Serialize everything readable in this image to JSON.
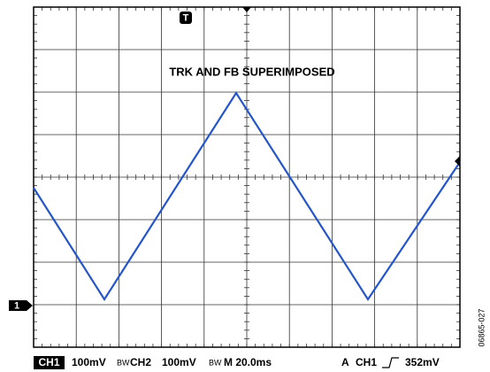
{
  "screen": {
    "annotation": "TRK AND FB SUPERIMPOSED",
    "trigger_marker": "T",
    "channel_marker": "1",
    "status_bar": {
      "ch1_label": "CH1",
      "ch1_scale": "100mV",
      "bw_1": "BW",
      "ch2_label": "CH2",
      "ch2_scale": "100mV",
      "bw_2": "BW",
      "timebase": "M 20.0ms",
      "trigger_mode": "A",
      "trigger_source": "CH1",
      "trigger_level": "352mV"
    },
    "figure_code": "06865-027"
  }
}
